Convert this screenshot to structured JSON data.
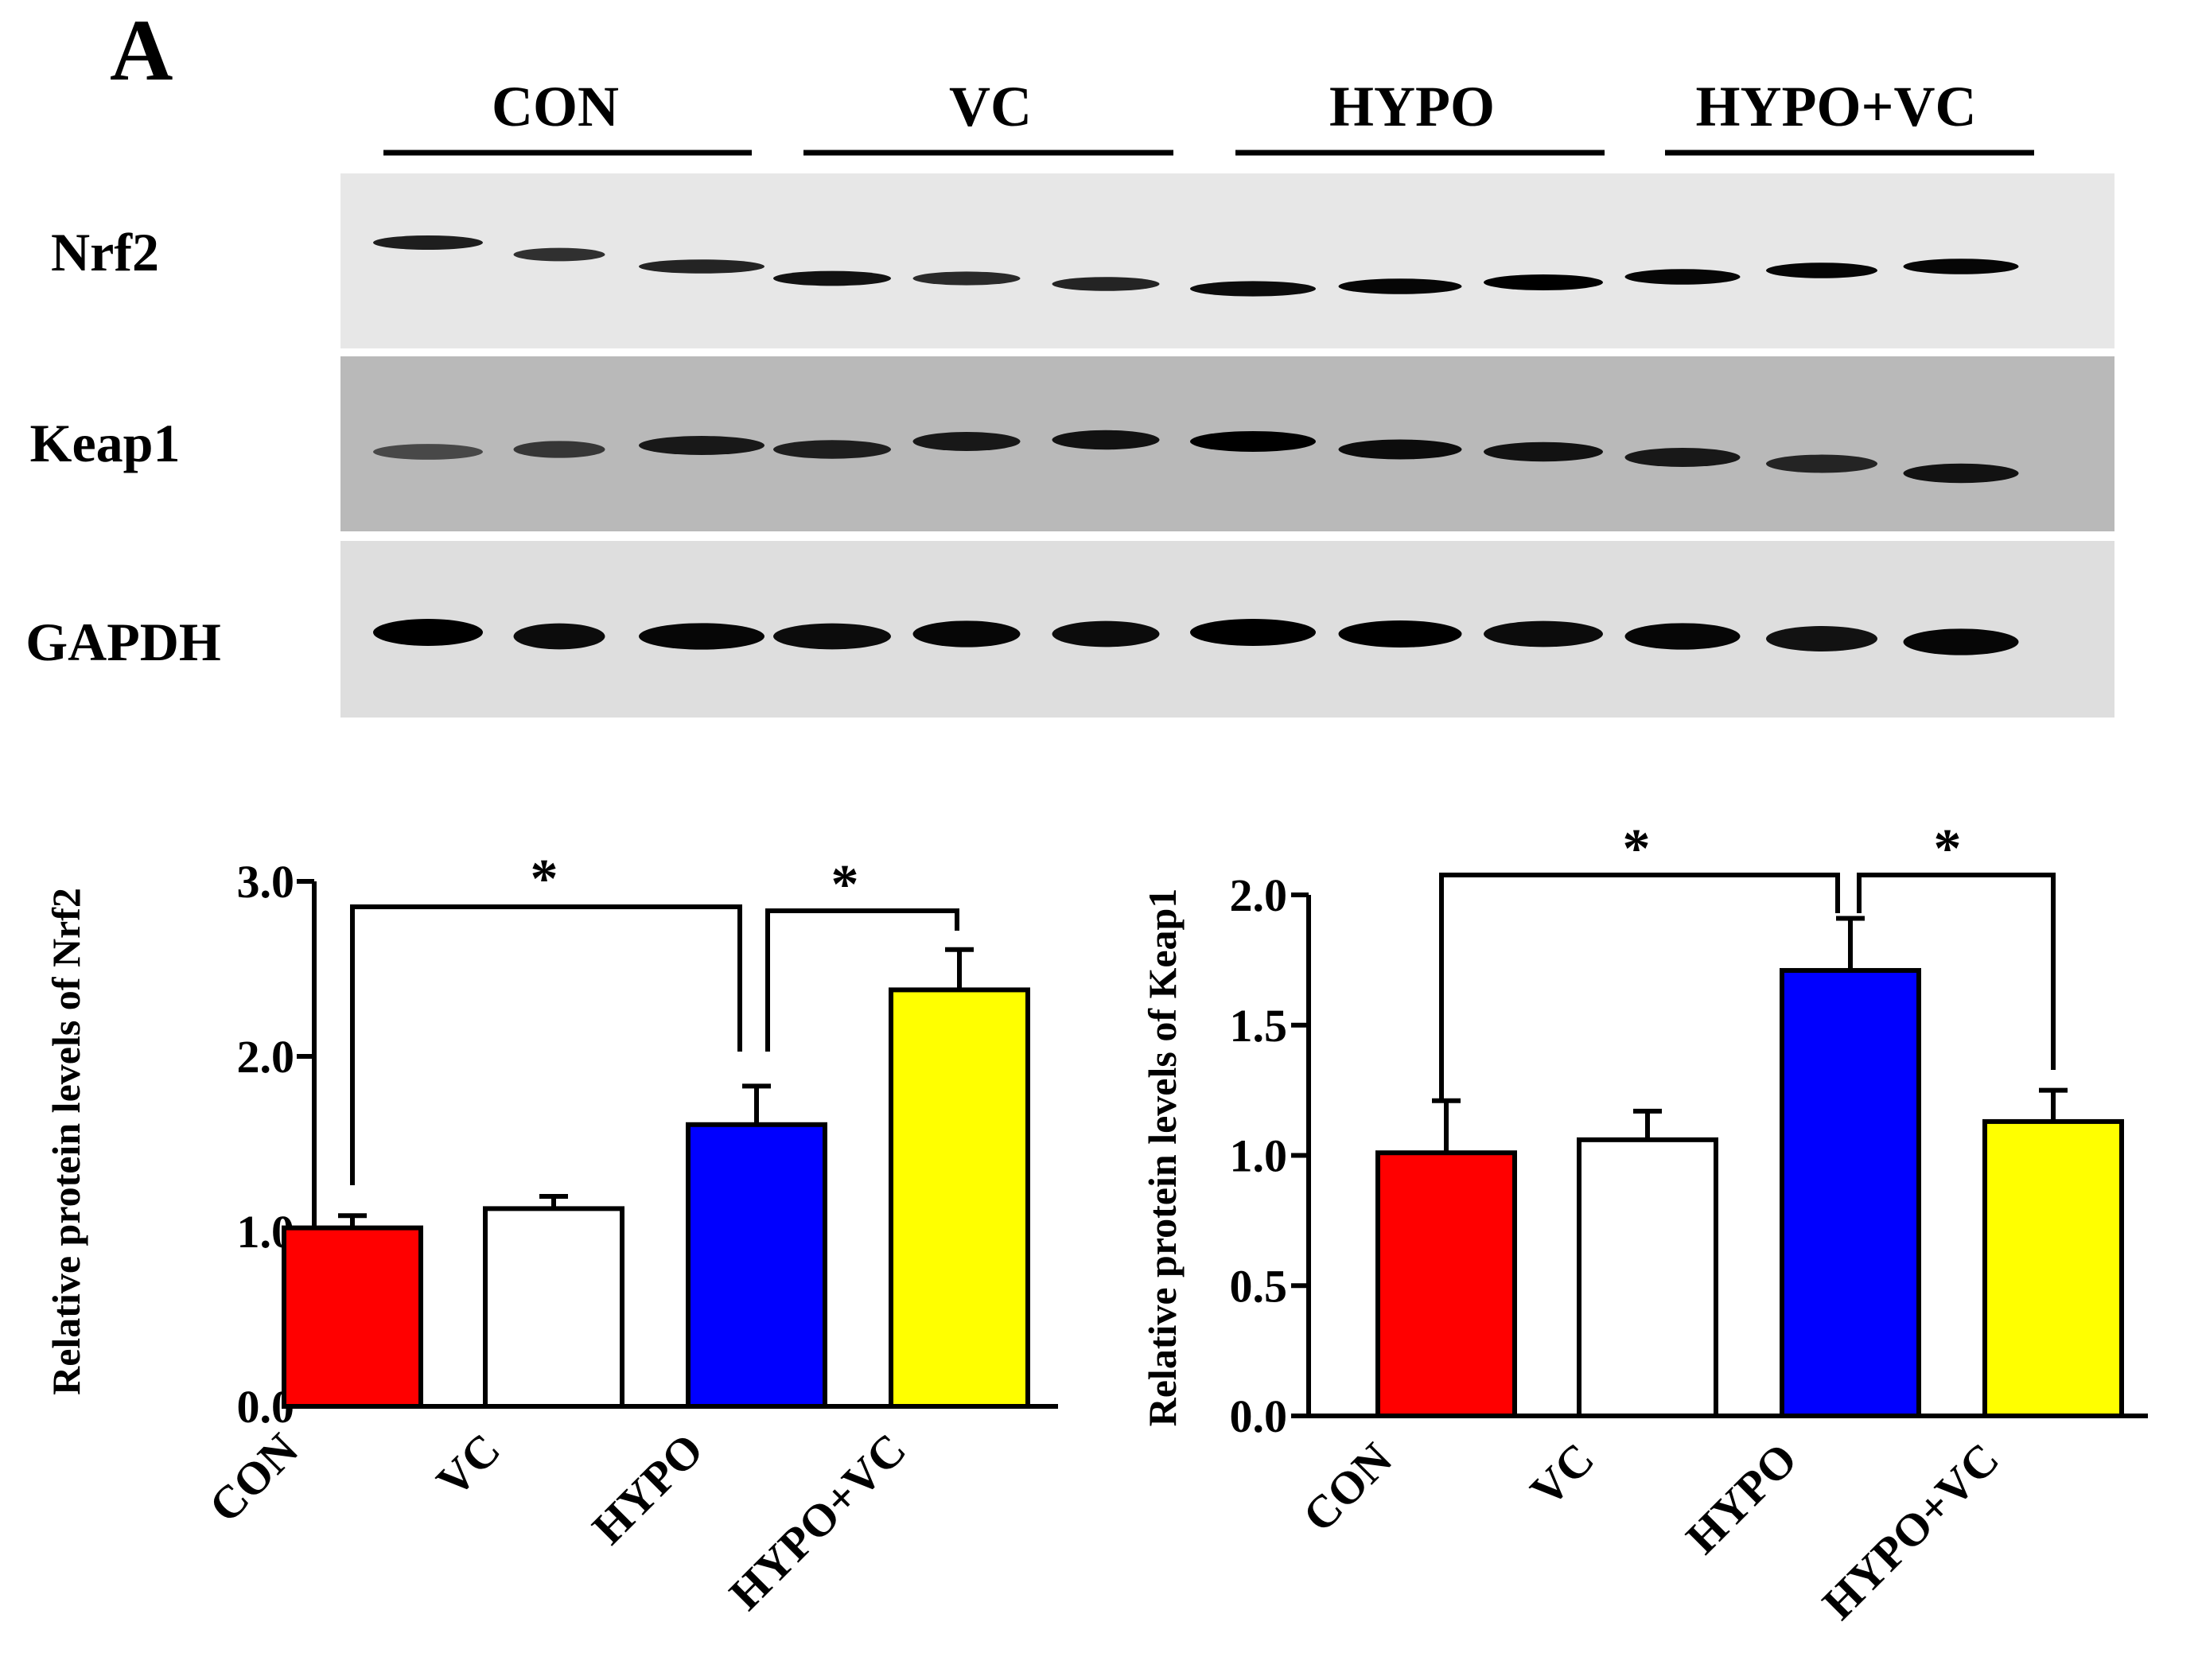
{
  "panel_label": "A",
  "blot": {
    "groups": [
      "CON",
      "VC",
      "HYPO",
      "HYPO+VC"
    ],
    "lanes_per_group": 3,
    "rows": [
      {
        "label": "Nrf2",
        "background": "#e7e7e7",
        "band_intensity": [
          0.75,
          0.6,
          0.7,
          0.85,
          0.65,
          0.7,
          0.9,
          0.95,
          1.0,
          0.95,
          0.95,
          0.95
        ]
      },
      {
        "label": "Keap1",
        "background": "#b9b9b9",
        "band_intensity": [
          0.4,
          0.55,
          0.8,
          0.75,
          0.8,
          0.85,
          1.0,
          0.9,
          0.85,
          0.8,
          0.7,
          0.85
        ]
      },
      {
        "label": "GAPDH",
        "background": "#dedede",
        "band_intensity": [
          1.0,
          0.9,
          0.95,
          0.9,
          0.95,
          0.9,
          1.0,
          1.0,
          0.9,
          0.95,
          0.85,
          0.95
        ]
      }
    ]
  },
  "chart_data": [
    {
      "type": "bar",
      "categories": [
        "CON",
        "VC",
        "HYPO",
        "HYPO+VC"
      ],
      "values": [
        1.02,
        1.13,
        1.61,
        2.38
      ],
      "errors": [
        0.07,
        0.07,
        0.22,
        0.23
      ],
      "colors": [
        "#ff0000",
        "#ffffff",
        "#0000ff",
        "#ffff00"
      ],
      "ylabel": "Relative protein levels of Nrf2",
      "xlabel": "",
      "ylim": [
        0,
        3.0
      ],
      "yticks": [
        "0.0",
        "1.0",
        "2.0",
        "3.0"
      ],
      "ytick_values": [
        0,
        1,
        2,
        3
      ],
      "significance": [
        {
          "from": 0,
          "to": 2,
          "label": "*"
        },
        {
          "from": 2,
          "to": 3,
          "label": "*"
        }
      ]
    },
    {
      "type": "bar",
      "categories": [
        "CON",
        "VC",
        "HYPO",
        "HYPO+VC"
      ],
      "values": [
        1.01,
        1.06,
        1.71,
        1.13
      ],
      "errors": [
        0.2,
        0.11,
        0.2,
        0.12
      ],
      "colors": [
        "#ff0000",
        "#ffffff",
        "#0000ff",
        "#ffff00"
      ],
      "ylabel": "Relative protein levels of Keap1",
      "xlabel": "",
      "ylim": [
        0,
        2.0
      ],
      "yticks": [
        "0.0",
        "0.5",
        "1.0",
        "1.5",
        "2.0"
      ],
      "ytick_values": [
        0,
        0.5,
        1,
        1.5,
        2
      ],
      "significance": [
        {
          "from": 0,
          "to": 2,
          "label": "*"
        },
        {
          "from": 2,
          "to": 3,
          "label": "*"
        }
      ]
    }
  ]
}
